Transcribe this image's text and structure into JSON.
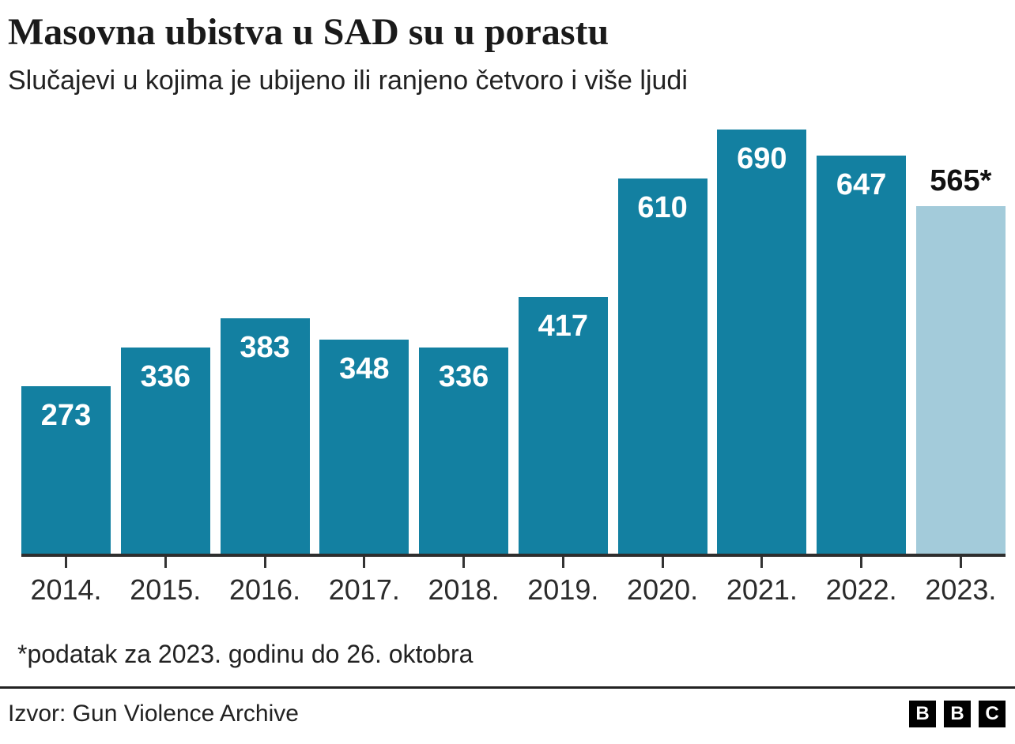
{
  "header": {
    "title": "Masovna ubistva u SAD su u porastu",
    "subtitle": "Slučajevi u kojima je ubijeno ili ranjeno četvoro i više ljudi"
  },
  "chart_data": {
    "type": "bar",
    "title": "Masovna ubistva u SAD su u porastu",
    "subtitle": "Slučajevi u kojima je ubijeno ili ranjeno četvoro i više ljudi",
    "categories": [
      "2014.",
      "2015.",
      "2016.",
      "2017.",
      "2018.",
      "2019.",
      "2020.",
      "2021.",
      "2022.",
      "2023."
    ],
    "values": [
      273,
      336,
      383,
      348,
      336,
      417,
      610,
      690,
      647,
      565
    ],
    "value_labels": [
      "273",
      "336",
      "383",
      "348",
      "336",
      "417",
      "610",
      "690",
      "647",
      "565*"
    ],
    "projected_index": 9,
    "bar_color": "#1380A1",
    "projected_bar_color": "#A3CBDA",
    "label_color_inside": "#FFFFFF",
    "label_color_outside": "#111111",
    "xlabel": "",
    "ylabel": "",
    "ylim": [
      0,
      690
    ],
    "grid": false,
    "legend": false
  },
  "footer": {
    "footnote": "*podatak za 2023. godinu do 26. oktobra",
    "source": "Izvor: Gun Violence Archive",
    "logo_letters": [
      "B",
      "B",
      "C"
    ]
  }
}
